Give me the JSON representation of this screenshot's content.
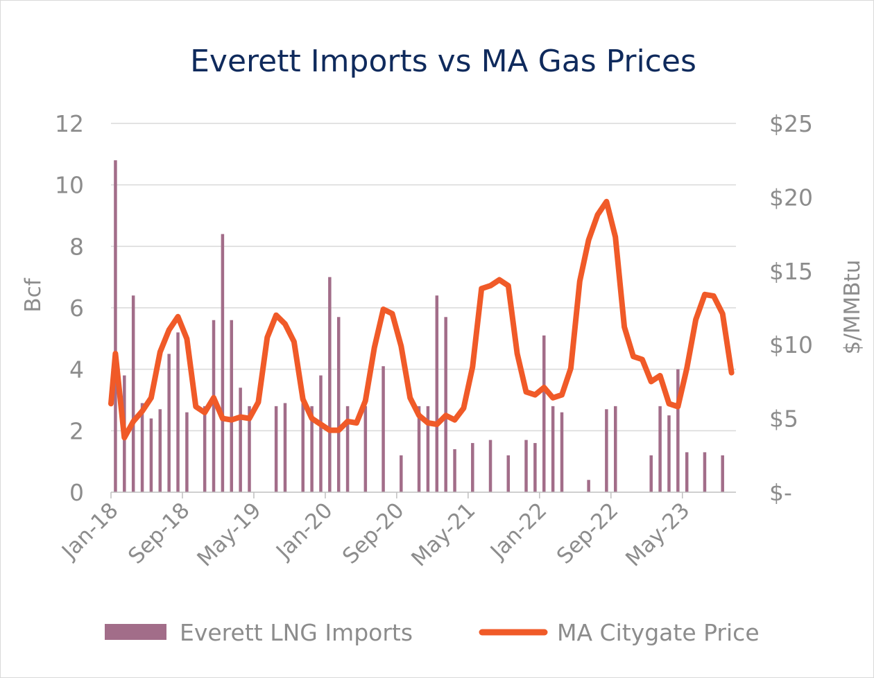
{
  "chart_data": {
    "type": "bar+line",
    "title": "Everett Imports vs MA Gas Prices",
    "ylabel_left": "Bcf",
    "ylabel_right": "$/MMBtu",
    "ylim_left": [
      0,
      12
    ],
    "ylim_right": [
      0,
      25
    ],
    "left_ticks": [
      "0",
      "2",
      "4",
      "6",
      "8",
      "10",
      "12"
    ],
    "right_ticks": [
      "$-",
      "$5",
      "$10",
      "$15",
      "$20",
      "$25"
    ],
    "x_tick_labels": [
      "Jan-18",
      "Sep-18",
      "May-19",
      "Jan-20",
      "Sep-20",
      "May-21",
      "Jan-22",
      "Sep-22",
      "May-23"
    ],
    "x_tick_month_index": [
      0,
      8,
      16,
      24,
      32,
      40,
      48,
      56,
      64
    ],
    "start_month": "Jan-18",
    "grid": true,
    "legend_position": "bottom",
    "colors": {
      "bars": "#a26d89",
      "line": "#f05a28",
      "grid": "#d9d9d9",
      "axis": "#bfbfbf"
    },
    "series": [
      {
        "name": "Everett LNG Imports",
        "kind": "bar",
        "axis": "left",
        "values": [
          10.8,
          3.8,
          6.4,
          2.9,
          2.4,
          2.7,
          4.5,
          5.2,
          2.6,
          0,
          2.8,
          5.6,
          8.4,
          5.6,
          3.4,
          2.8,
          0,
          0,
          2.8,
          2.9,
          0,
          2.9,
          2.8,
          3.8,
          7.0,
          5.7,
          2.8,
          0,
          2.8,
          0,
          4.1,
          0,
          1.2,
          0,
          2.8,
          2.8,
          6.4,
          5.7,
          1.4,
          0,
          1.6,
          0,
          1.7,
          0,
          1.2,
          0,
          1.7,
          1.6,
          5.1,
          2.8,
          2.6,
          0,
          0,
          0.4,
          0,
          2.7,
          2.8,
          0,
          0,
          0,
          1.2,
          2.8,
          2.5,
          4.0,
          1.3,
          0,
          1.3,
          0,
          1.2,
          0
        ]
      },
      {
        "name": "MA Citygate Price",
        "kind": "line",
        "axis": "right",
        "values": [
          9.4,
          3.7,
          4.8,
          5.5,
          6.4,
          9.5,
          11.0,
          11.9,
          10.4,
          5.8,
          5.4,
          6.4,
          5.0,
          4.9,
          5.1,
          5.0,
          6.1,
          10.5,
          12.0,
          11.4,
          10.2,
          6.3,
          5.0,
          4.6,
          4.2,
          4.2,
          4.8,
          4.7,
          6.2,
          9.8,
          12.4,
          12.1,
          9.9,
          6.4,
          5.2,
          4.7,
          4.6,
          5.2,
          4.9,
          5.7,
          8.5,
          13.8,
          14.0,
          14.4,
          14.0,
          9.4,
          6.8,
          6.6,
          7.1,
          6.4,
          6.6,
          8.4,
          14.3,
          17.1,
          18.8,
          19.7,
          17.3,
          11.2,
          9.2,
          9.0,
          7.5,
          7.9,
          6.0,
          5.8,
          8.4,
          11.7,
          13.4,
          13.3,
          12.1,
          8.1
        ]
      }
    ]
  }
}
